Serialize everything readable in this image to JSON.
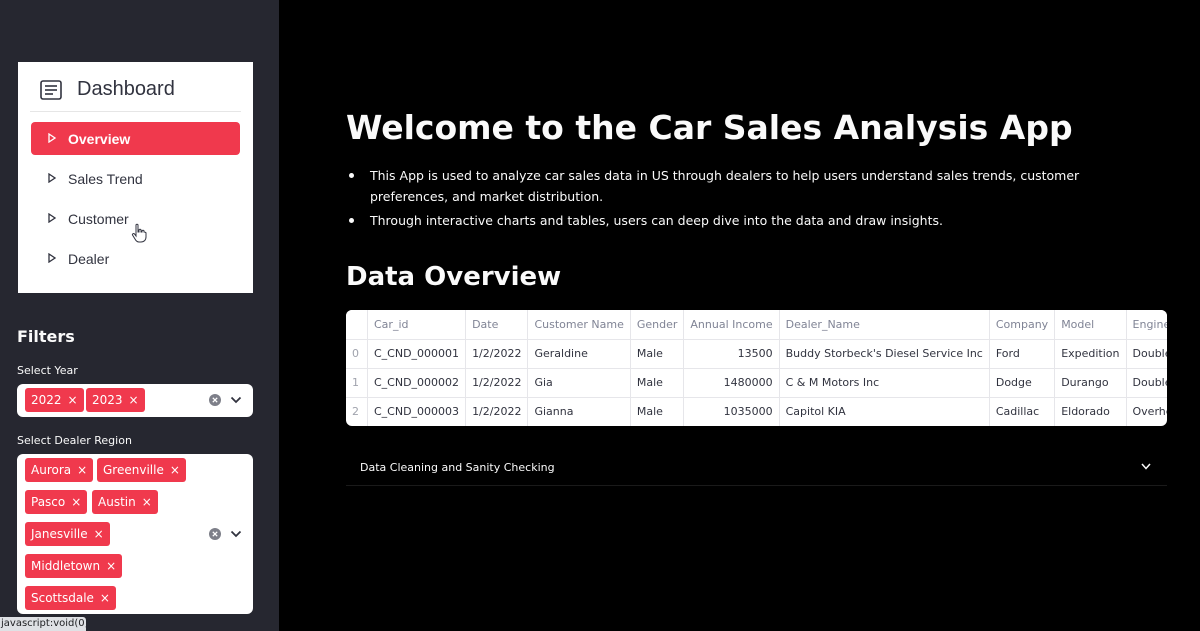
{
  "sidebar": {
    "nav": {
      "title": "Dashboard",
      "items": [
        {
          "label": "Overview",
          "active": true
        },
        {
          "label": "Sales Trend",
          "active": false
        },
        {
          "label": "Customer",
          "active": false
        },
        {
          "label": "Dealer",
          "active": false
        }
      ]
    },
    "filters": {
      "title": "Filters",
      "year": {
        "label": "Select Year",
        "tags": [
          "2022",
          "2023"
        ]
      },
      "region": {
        "label": "Select Dealer Region",
        "tags": [
          "Aurora",
          "Greenville",
          "Pasco",
          "Austin",
          "Janesville",
          "Middletown",
          "Scottsdale"
        ]
      }
    },
    "status_url": "javascript:void(0);"
  },
  "main": {
    "title": "Welcome to the Car Sales Analysis App",
    "bullets": [
      "This App is used to analyze car sales data in US through dealers to help users understand sales trends, customer preferences, and market distribution.",
      "Through interactive charts and tables, users can deep dive into the data and draw insights."
    ],
    "section_title": "Data Overview",
    "table": {
      "columns": [
        "",
        "Car_id",
        "Date",
        "Customer Name",
        "Gender",
        "Annual Income",
        "Dealer_Name",
        "Company",
        "Model",
        "Engine"
      ],
      "rows": [
        [
          "0",
          "C_CND_000001",
          "1/2/2022",
          "Geraldine",
          "Male",
          "13500",
          "Buddy Storbeck's Diesel Service Inc",
          "Ford",
          "Expedition",
          "DoubleÂ Overhea"
        ],
        [
          "1",
          "C_CND_000002",
          "1/2/2022",
          "Gia",
          "Male",
          "1480000",
          "C & M Motors Inc",
          "Dodge",
          "Durango",
          "DoubleÂ Overhea"
        ],
        [
          "2",
          "C_CND_000003",
          "1/2/2022",
          "Gianna",
          "Male",
          "1035000",
          "Capitol KIA",
          "Cadillac",
          "Eldorado",
          "Overhead Camsh"
        ]
      ]
    },
    "expander_label": "Data Cleaning and Sanity Checking"
  },
  "colors": {
    "accent": "#f0394d",
    "sidebar_bg": "#262730",
    "main_bg": "#000000"
  }
}
